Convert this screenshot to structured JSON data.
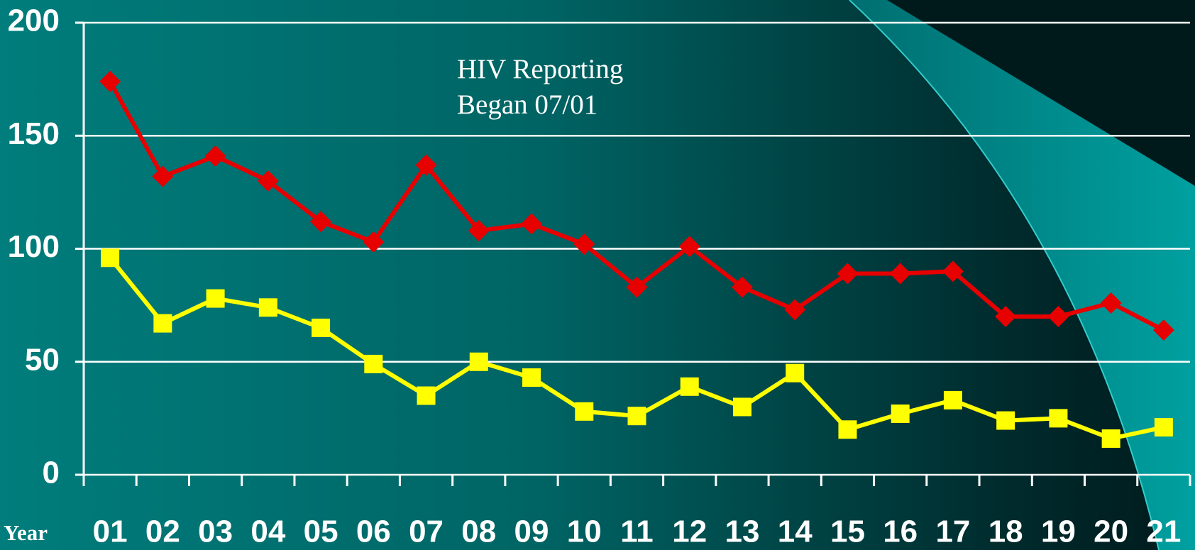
{
  "chart_data": {
    "type": "line",
    "annotation": [
      "HIV Reporting",
      "Began 07/01"
    ],
    "x_label": "Year",
    "categories": [
      "01",
      "02",
      "03",
      "04",
      "05",
      "06",
      "07",
      "08",
      "09",
      "10",
      "11",
      "12",
      "13",
      "14",
      "15",
      "16",
      "17",
      "18",
      "19",
      "20",
      "21"
    ],
    "series": [
      {
        "color": "#e60000",
        "marker": "diamond",
        "values": [
          174,
          132,
          141,
          130,
          112,
          103,
          137,
          108,
          111,
          102,
          83,
          101,
          83,
          73,
          89,
          89,
          90,
          70,
          70,
          76,
          64
        ]
      },
      {
        "color": "#ffff00",
        "marker": "square",
        "values": [
          96,
          67,
          78,
          74,
          65,
          49,
          35,
          50,
          43,
          28,
          26,
          39,
          30,
          45,
          20,
          27,
          33,
          24,
          25,
          16,
          21
        ]
      }
    ],
    "ylim": [
      0,
      200
    ],
    "yticks": [
      0,
      50,
      100,
      150,
      200
    ],
    "grid": true
  }
}
